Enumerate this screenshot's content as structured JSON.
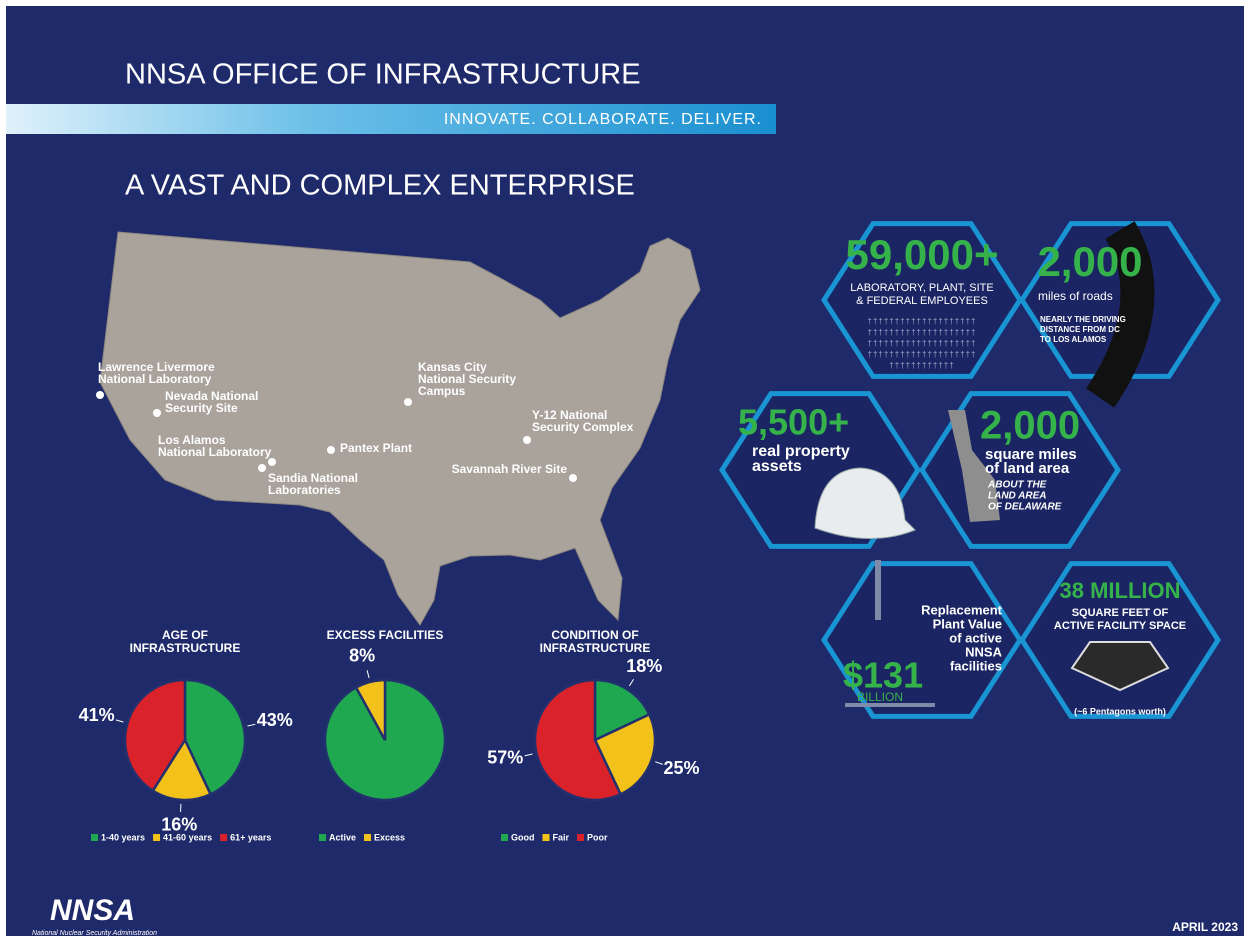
{
  "header": {
    "title": "NNSA OFFICE OF INFRASTRUCTURE",
    "tagline": "INNOVATE. COLLABORATE. DELIVER.",
    "subtitle": "A VAST AND COMPLEX ENTERPRISE"
  },
  "map": {
    "sites": [
      [
        "Lawrence Livermore",
        "National Laboratory"
      ],
      [
        "Nevada National",
        "Security Site"
      ],
      [
        "Los Alamos",
        "National Laboratory"
      ],
      [
        "Sandia National",
        "Laboratories"
      ],
      [
        "Pantex Plant"
      ],
      [
        "Kansas City",
        "National Security",
        "Campus"
      ],
      [
        "Y-12 National",
        "Security Complex"
      ],
      [
        "Savannah River Site"
      ]
    ]
  },
  "chart_data": [
    {
      "type": "pie",
      "title": [
        "AGE OF",
        "INFRASTRUCTURE"
      ],
      "categories": [
        "1-40 years",
        "41-60 years",
        "61+ years"
      ],
      "values": [
        43,
        16,
        41
      ],
      "value_labels": [
        "43%",
        "16%",
        "41%"
      ],
      "colors": [
        "#1fa84f",
        "#f2c21b",
        "#d9222a"
      ]
    },
    {
      "type": "pie",
      "title": [
        "EXCESS FACILITIES"
      ],
      "categories": [
        "Active",
        "Excess"
      ],
      "values": [
        92,
        8
      ],
      "value_labels": [
        null,
        "8%"
      ],
      "colors": [
        "#1fa84f",
        "#f2c21b"
      ]
    },
    {
      "type": "pie",
      "title": [
        "CONDITION OF",
        "INFRASTRUCTURE"
      ],
      "categories": [
        "Good",
        "Fair",
        "Poor"
      ],
      "values": [
        18,
        25,
        57
      ],
      "value_labels": [
        "18%",
        "25%",
        "57%"
      ],
      "colors": [
        "#1fa84f",
        "#f2c21b",
        "#d9222a"
      ]
    }
  ],
  "stats": [
    {
      "big": "59,000+",
      "text": [
        "LABORATORY, PLANT, SITE",
        "& FEDERAL EMPLOYEES"
      ]
    },
    {
      "big": "2,000",
      "text": [
        "miles of roads"
      ],
      "note": [
        "NEARLY THE DRIVING",
        "DISTANCE FROM DC",
        "TO LOS ALAMOS"
      ]
    },
    {
      "big": "5,500+",
      "text": [
        "real property",
        "assets"
      ]
    },
    {
      "big": "2,000",
      "text": [
        "square miles",
        "of land area"
      ],
      "note": [
        "ABOUT THE",
        "LAND AREA",
        "OF DELAWARE"
      ]
    },
    {
      "big": "$131",
      "unit": "BILLION",
      "text": [
        "Replacement",
        "Plant Value",
        "of active",
        "NNSA",
        "facilities"
      ]
    },
    {
      "big": "38 MILLION",
      "text": [
        "SQUARE FEET OF",
        "ACTIVE FACILITY SPACE"
      ],
      "note": [
        "(~6 Pentagons worth)"
      ]
    }
  ],
  "footer": {
    "logo": "NNSA",
    "org": "National Nuclear Security Administration",
    "date": "APRIL 2023"
  }
}
